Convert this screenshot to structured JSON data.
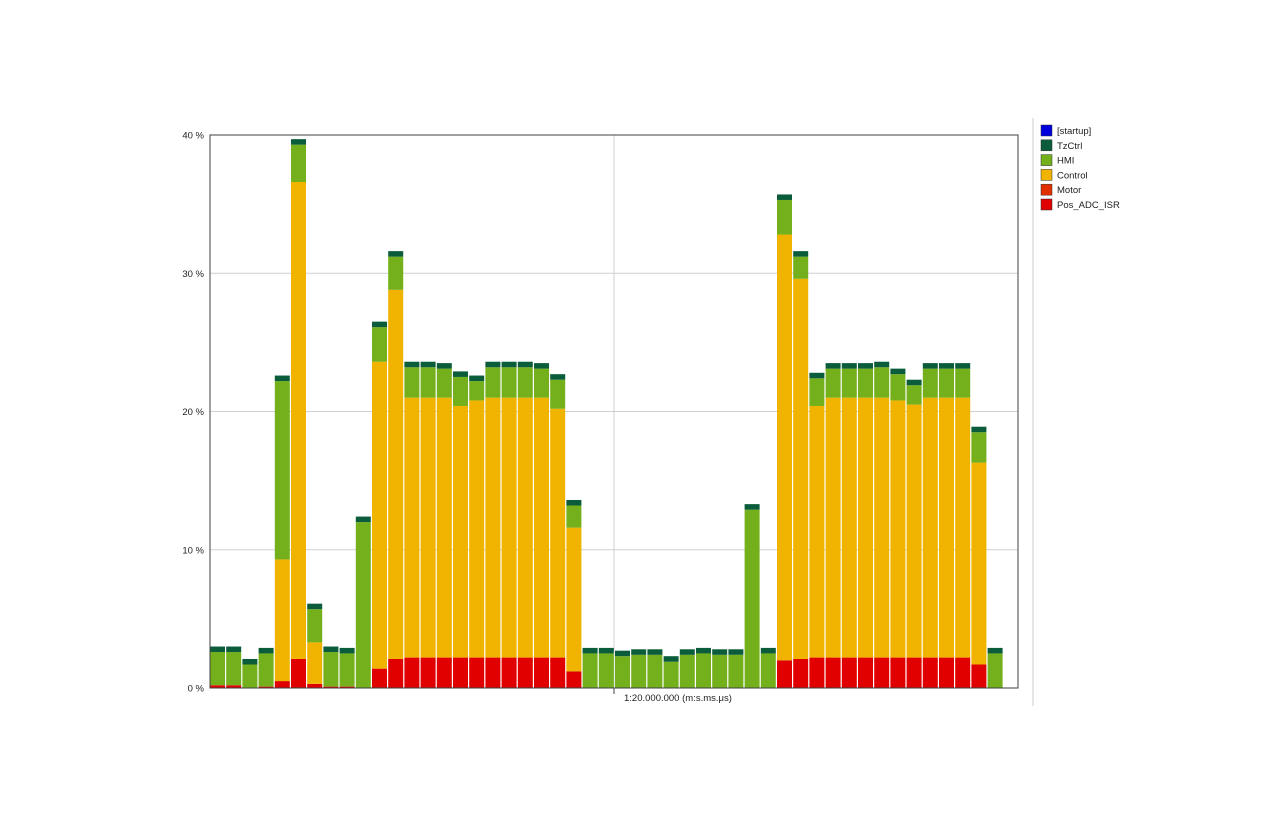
{
  "chart_data": {
    "type": "bar",
    "stacked": true,
    "title": "",
    "xlabel": "",
    "ylabel": "",
    "ylim": [
      0,
      40
    ],
    "y_ticks": [
      0,
      10,
      20,
      30,
      40
    ],
    "y_tick_labels": [
      "0 %",
      "10 %",
      "20 %",
      "30 %",
      "40 %"
    ],
    "x_center_label": "1:20.000.000 (m:s.ms.μs)",
    "grid": true,
    "legend_position": "right",
    "series": [
      {
        "name": "Pos_ADC_ISR",
        "color": "#e00000",
        "values": [
          0.2,
          0.2,
          0,
          0.1,
          0.5,
          2.1,
          0.3,
          0.1,
          0.1,
          0,
          1.4,
          2.1,
          2.2,
          2.2,
          2.2,
          2.2,
          2.2,
          2.2,
          2.2,
          2.2,
          2.2,
          2.2,
          1.2,
          0,
          0,
          0,
          0,
          0,
          0,
          0,
          0,
          0,
          0,
          0,
          0,
          2.0,
          2.1,
          2.2,
          2.2,
          2.2,
          2.2,
          2.2,
          2.2,
          2.2,
          2.2,
          2.2,
          2.2,
          1.7,
          0,
          0,
          0
        ]
      },
      {
        "name": "Motor",
        "color": "#e03000",
        "values": [
          0,
          0,
          0,
          0,
          0,
          0,
          0,
          0,
          0,
          0,
          0,
          0,
          0,
          0,
          0,
          0,
          0,
          0,
          0,
          0,
          0,
          0,
          0,
          0,
          0,
          0,
          0,
          0,
          0,
          0,
          0,
          0,
          0,
          0,
          0,
          0,
          0,
          0,
          0,
          0,
          0,
          0,
          0,
          0,
          0,
          0,
          0,
          0,
          0,
          0,
          0
        ]
      },
      {
        "name": "Control",
        "color": "#f0b400",
        "values": [
          0,
          0,
          0,
          0,
          8.8,
          34.5,
          3.0,
          0,
          0,
          0,
          22.2,
          26.7,
          18.8,
          18.8,
          18.8,
          18.2,
          18.6,
          18.8,
          18.8,
          18.8,
          18.8,
          18.0,
          10.4,
          0,
          0,
          0,
          0,
          0,
          0,
          0,
          0,
          0,
          0,
          0,
          0,
          30.8,
          27.5,
          18.2,
          18.8,
          18.8,
          18.8,
          18.8,
          18.6,
          18.3,
          18.8,
          18.8,
          18.8,
          14.6,
          0,
          0,
          0
        ]
      },
      {
        "name": "HMI",
        "color": "#74b01c",
        "values": [
          2.4,
          2.4,
          1.7,
          2.4,
          12.9,
          2.7,
          2.4,
          2.5,
          2.4,
          12.0,
          2.5,
          2.4,
          2.2,
          2.2,
          2.1,
          2.1,
          1.4,
          2.2,
          2.2,
          2.2,
          2.1,
          2.1,
          1.6,
          2.5,
          2.5,
          2.3,
          2.4,
          2.4,
          1.9,
          2.4,
          2.5,
          2.4,
          2.4,
          12.9,
          2.5,
          2.5,
          1.6,
          2.0,
          2.1,
          2.1,
          2.1,
          2.2,
          1.9,
          1.4,
          2.1,
          2.1,
          2.1,
          2.2,
          2.5,
          2.5,
          1.7
        ]
      },
      {
        "name": "TzCtrl",
        "color": "#0b5c3a",
        "values": [
          0.4,
          0.4,
          0.4,
          0.4,
          0.4,
          0.4,
          0.4,
          0.4,
          0.4,
          0.4,
          0.4,
          0.4,
          0.4,
          0.4,
          0.4,
          0.4,
          0.4,
          0.4,
          0.4,
          0.4,
          0.4,
          0.4,
          0.4,
          0.4,
          0.4,
          0.4,
          0.4,
          0.4,
          0.4,
          0.4,
          0.4,
          0.4,
          0.4,
          0.4,
          0.4,
          0.4,
          0.4,
          0.4,
          0.4,
          0.4,
          0.4,
          0.4,
          0.4,
          0.4,
          0.4,
          0.4,
          0.4,
          0.4,
          0.4,
          0.4,
          0.4
        ]
      },
      {
        "name": "[startup]",
        "color": "#0000dd",
        "values": [
          0,
          0,
          0,
          0,
          0,
          0,
          0,
          0,
          0,
          0,
          0,
          0,
          0,
          0,
          0,
          0,
          0,
          0,
          0,
          0,
          0,
          0,
          0,
          0,
          0,
          0,
          0,
          0,
          0,
          0,
          0,
          0,
          0,
          0,
          0,
          0,
          0,
          0,
          0,
          0,
          0,
          0,
          0,
          0,
          0,
          0,
          0,
          0,
          0,
          0,
          0
        ]
      }
    ],
    "legend_order": [
      "[startup]",
      "TzCtrl",
      "HMI",
      "Control",
      "Motor",
      "Pos_ADC_ISR"
    ]
  }
}
